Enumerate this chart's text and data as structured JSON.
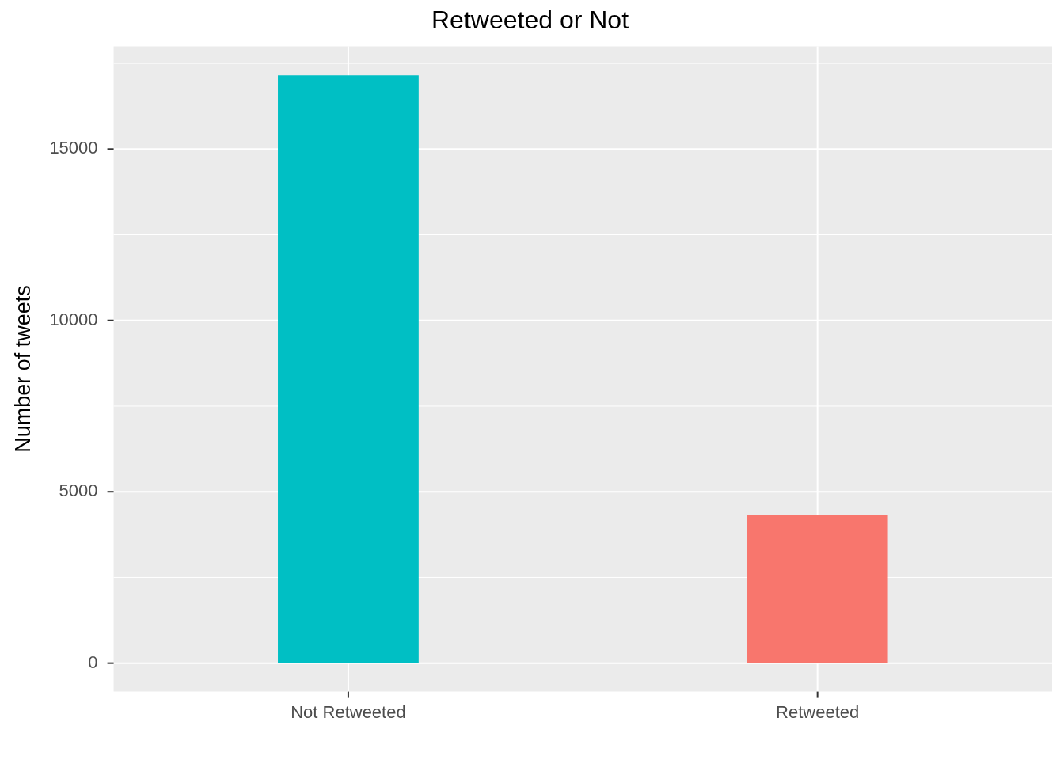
{
  "chart_data": {
    "type": "bar",
    "title": "Retweeted or Not",
    "ylabel": "Number of tweets",
    "categories": [
      "Not Retweeted",
      "Retweeted"
    ],
    "values": [
      17150,
      4320
    ],
    "colors": [
      "#00bfc4",
      "#f8766d"
    ],
    "ylim": [
      -830,
      18000
    ],
    "yticks": [
      0,
      {
        "value": 2500,
        "label": null
      },
      5000,
      {
        "value": 7500,
        "label": null
      },
      10000,
      {
        "value": 12500,
        "label": null
      },
      15000,
      {
        "value": 17500,
        "label": null
      }
    ],
    "grid": true,
    "legend": false
  }
}
